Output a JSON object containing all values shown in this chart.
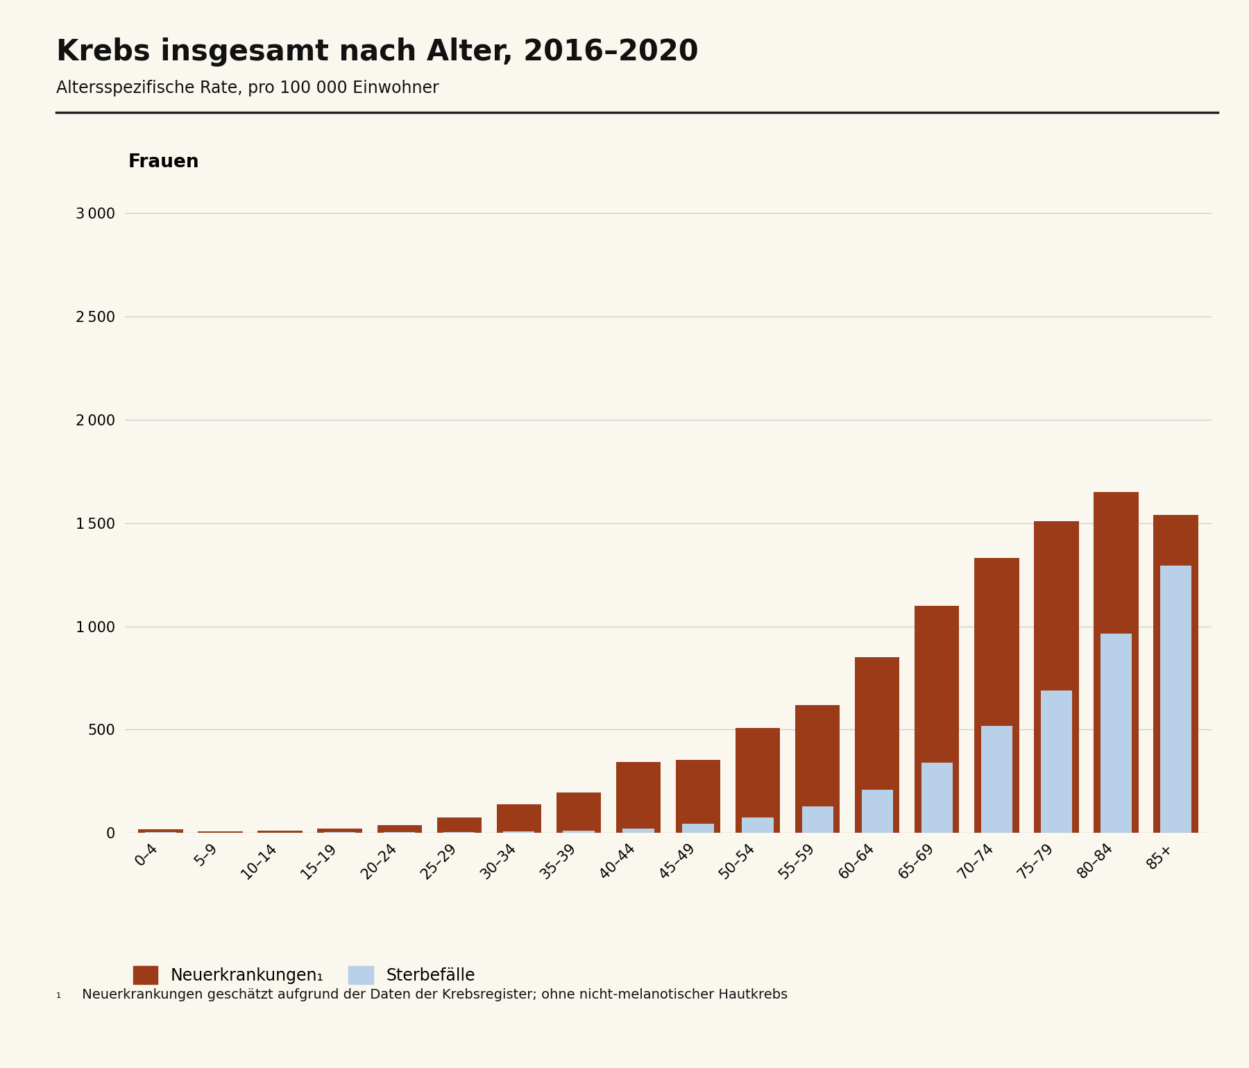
{
  "title": "Krebs insgesamt nach Alter, 2016–2020",
  "subtitle": "Altersspezifische Rate, pro 100 000 Einwohner",
  "section_label": "Frauen",
  "background_color": "#faf8ee",
  "bar_color_new": "#9B3B18",
  "bar_color_deaths": "#b8d0e8",
  "categories": [
    "0–4",
    "5–9",
    "10–14",
    "15–19",
    "20–24",
    "25–29",
    "30–34",
    "35–39",
    "40–44",
    "45–49",
    "50–54",
    "55–59",
    "60–64",
    "65–69",
    "70–74",
    "75–79",
    "80–84",
    "85+"
  ],
  "neuerkrankungen": [
    18,
    8,
    13,
    22,
    40,
    75,
    140,
    195,
    345,
    355,
    510,
    620,
    850,
    1100,
    1330,
    1510,
    1650,
    1540
  ],
  "sterbefaelle": [
    5,
    2,
    2,
    4,
    5,
    5,
    8,
    10,
    20,
    45,
    75,
    130,
    210,
    340,
    520,
    690,
    965,
    1295
  ],
  "ylim": [
    0,
    3100
  ],
  "yticks": [
    0,
    500,
    1000,
    1500,
    2000,
    2500,
    3000
  ],
  "legend_new": "Neuerkrankungen₁",
  "legend_deaths": "Sterbefälle",
  "footnote_sub": "₁",
  "footnote_text": " Neuerkrankungen geschätzt aufgrund der Daten der Krebsregister; ohne nicht-melanotischer Hautkrebs",
  "title_fontsize": 30,
  "subtitle_fontsize": 17,
  "section_fontsize": 19,
  "tick_fontsize": 15,
  "legend_fontsize": 17,
  "footnote_fontsize": 14
}
